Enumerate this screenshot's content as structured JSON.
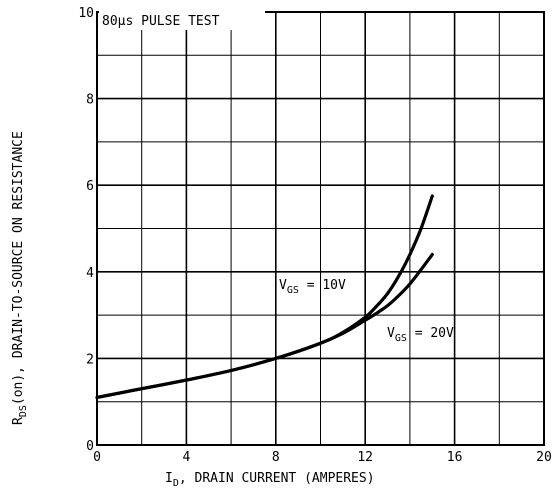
{
  "chart_data": {
    "type": "line",
    "annotation": "80μs PULSE TEST",
    "xlabel": {
      "prefix": "I",
      "sub": "D",
      "rest": ", DRAIN CURRENT (AMPERES)"
    },
    "ylabel": {
      "prefix": "R",
      "sub": "DS",
      "rest": "(on), DRAIN-TO-SOURCE ON RESISTANCE"
    },
    "xlim": [
      0,
      20
    ],
    "ylim": [
      0,
      10
    ],
    "x_ticks": [
      0,
      4,
      8,
      12,
      16,
      20
    ],
    "x_tick_labels": [
      "0",
      "4",
      "8",
      "12",
      "16",
      "20"
    ],
    "y_ticks": [
      0,
      2,
      4,
      6,
      8,
      10
    ],
    "y_tick_labels": [
      "0",
      "2",
      "4",
      "6",
      "8",
      "10"
    ],
    "x_minor_step": 2,
    "y_minor_step": 1,
    "grid": true,
    "series": [
      {
        "name": "VGS = 10V",
        "label": {
          "prefix": "V",
          "sub": "GS",
          "rest": " = 10V"
        },
        "x": [
          0,
          2,
          4,
          6,
          8,
          10,
          11,
          12,
          12.5,
          13,
          13.5,
          14,
          14.5,
          15
        ],
        "y": [
          1.1,
          1.3,
          1.5,
          1.72,
          2.0,
          2.35,
          2.6,
          2.95,
          3.2,
          3.5,
          3.9,
          4.4,
          5.0,
          5.75
        ]
      },
      {
        "name": "VGS = 20V",
        "label": {
          "prefix": "V",
          "sub": "GS",
          "rest": " = 20V"
        },
        "x": [
          0,
          2,
          4,
          6,
          8,
          10,
          11,
          12,
          12.5,
          13,
          13.5,
          14,
          14.5,
          15
        ],
        "y": [
          1.1,
          1.3,
          1.5,
          1.72,
          2.0,
          2.35,
          2.58,
          2.88,
          3.04,
          3.22,
          3.45,
          3.72,
          4.05,
          4.4
        ]
      }
    ]
  }
}
